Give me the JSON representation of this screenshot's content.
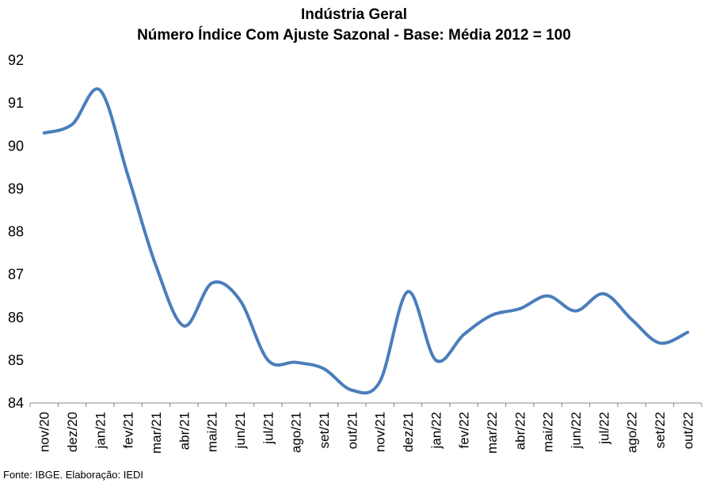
{
  "chart_data": {
    "type": "line",
    "title": "Indústria Geral",
    "subtitle": "Número Índice Com Ajuste Sazonal - Base: Média 2012 = 100",
    "source": "Fonte: IBGE. Elaboração: IEDI",
    "x": [
      "nov/20",
      "dez/20",
      "jan/21",
      "fev/21",
      "mar/21",
      "abr/21",
      "mai/21",
      "jun/21",
      "jul/21",
      "ago/21",
      "set/21",
      "out/21",
      "nov/21",
      "dez/21",
      "jan/22",
      "fev/22",
      "mar/22",
      "abr/22",
      "mai/22",
      "jun/22",
      "jul/22",
      "ago/22",
      "set/22",
      "out/22"
    ],
    "series": [
      {
        "values": [
          90.3,
          90.5,
          91.3,
          89.3,
          87.2,
          85.8,
          86.8,
          86.4,
          85.0,
          84.95,
          84.8,
          84.3,
          84.5,
          86.6,
          85.0,
          85.6,
          86.05,
          86.2,
          86.5,
          86.15,
          86.55,
          85.95,
          85.4,
          85.65
        ],
        "color": "#4a7ebb"
      }
    ],
    "yticks": [
      "84",
      "85",
      "86",
      "87",
      "88",
      "89",
      "90",
      "91",
      "92"
    ],
    "ylim": [
      84,
      92
    ],
    "grid": false
  }
}
